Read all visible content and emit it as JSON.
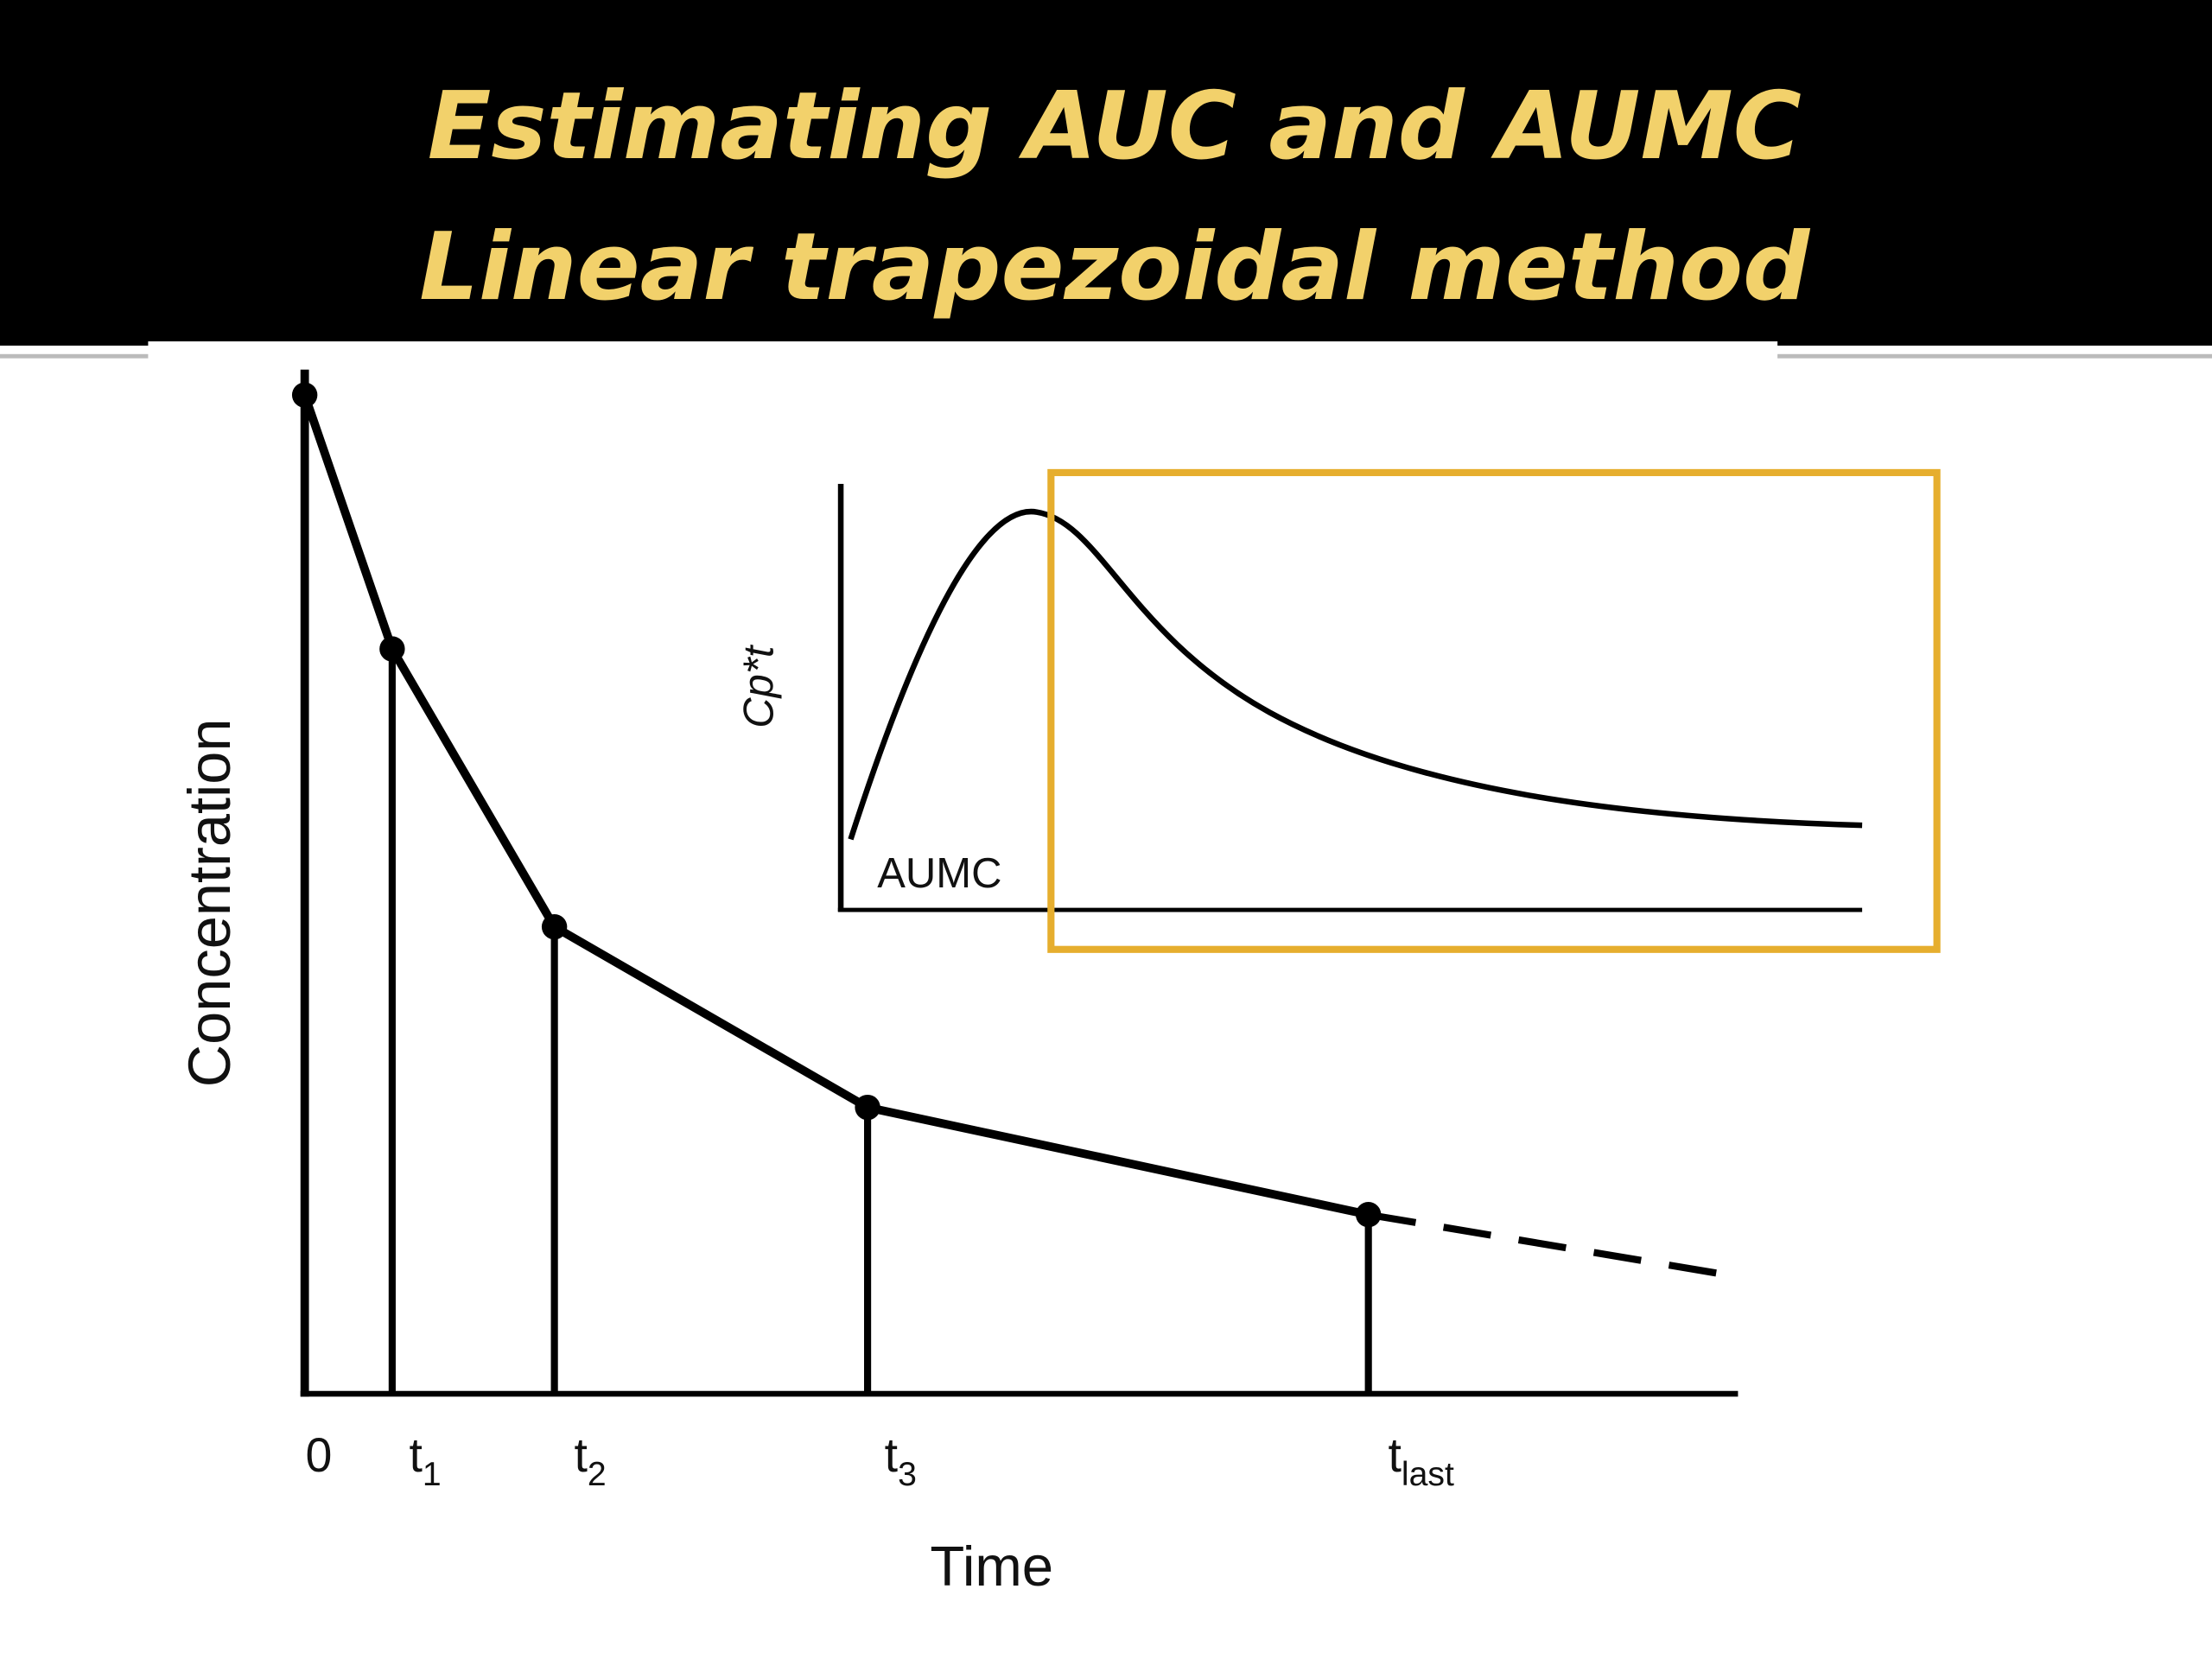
{
  "slide": {
    "title": [
      "Estimating AUC and AUMC",
      "Linear trapezoidal method"
    ]
  },
  "diagram": {
    "y_label": "Concentration",
    "x_label": "Time",
    "x_ticks": [
      {
        "text": "0"
      },
      {
        "text": "t",
        "sub": "1"
      },
      {
        "text": "t",
        "sub": "2"
      },
      {
        "text": "t",
        "sub": "3"
      },
      {
        "text": "t",
        "sub": "last"
      }
    ],
    "inset": {
      "y_label": "Cp*t",
      "label": "AUMC"
    }
  }
}
